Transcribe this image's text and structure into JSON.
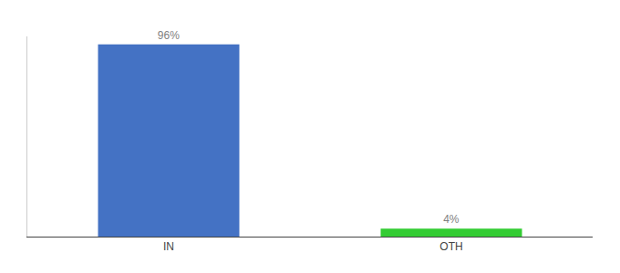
{
  "chart_data": {
    "type": "bar",
    "categories": [
      "IN",
      "OTH"
    ],
    "values": [
      96,
      4
    ],
    "value_labels": [
      "96%",
      "4%"
    ],
    "data_labels": true,
    "colors": [
      "#4472c4",
      "#33cc33"
    ],
    "ylim": [
      0,
      100
    ],
    "grid": false,
    "tick_labels": "x"
  }
}
